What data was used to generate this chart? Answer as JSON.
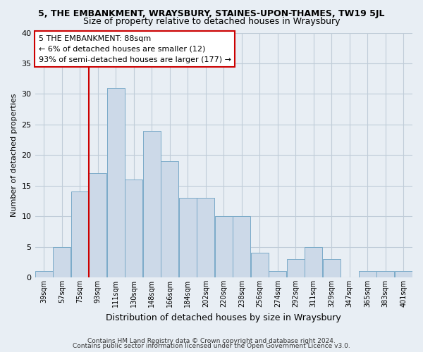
{
  "title": "5, THE EMBANKMENT, WRAYSBURY, STAINES-UPON-THAMES, TW19 5JL",
  "subtitle": "Size of property relative to detached houses in Wraysbury",
  "xlabel": "Distribution of detached houses by size in Wraysbury",
  "ylabel": "Number of detached properties",
  "bin_labels": [
    "39sqm",
    "57sqm",
    "75sqm",
    "93sqm",
    "111sqm",
    "130sqm",
    "148sqm",
    "166sqm",
    "184sqm",
    "202sqm",
    "220sqm",
    "238sqm",
    "256sqm",
    "274sqm",
    "292sqm",
    "311sqm",
    "329sqm",
    "347sqm",
    "365sqm",
    "383sqm",
    "401sqm"
  ],
  "bar_values": [
    1,
    5,
    14,
    17,
    31,
    16,
    24,
    19,
    13,
    13,
    10,
    10,
    4,
    1,
    3,
    5,
    3,
    0,
    1,
    1,
    1
  ],
  "bar_color": "#ccd9e8",
  "bar_edge_color": "#7aaac8",
  "vline_x_index": 3,
  "vline_color": "#cc0000",
  "ylim": [
    0,
    40
  ],
  "yticks": [
    0,
    5,
    10,
    15,
    20,
    25,
    30,
    35,
    40
  ],
  "annotation_text": "5 THE EMBANKMENT: 88sqm\n← 6% of detached houses are smaller (12)\n93% of semi-detached houses are larger (177) →",
  "annotation_box_color": "#ffffff",
  "annotation_box_edge": "#cc0000",
  "footer1": "Contains HM Land Registry data © Crown copyright and database right 2024.",
  "footer2": "Contains public sector information licensed under the Open Government Licence v3.0.",
  "background_color": "#e8eef4",
  "axes_bg_color": "#e8eef4",
  "grid_color": "#c0ccd8",
  "title_fontsize": 9,
  "subtitle_fontsize": 9
}
